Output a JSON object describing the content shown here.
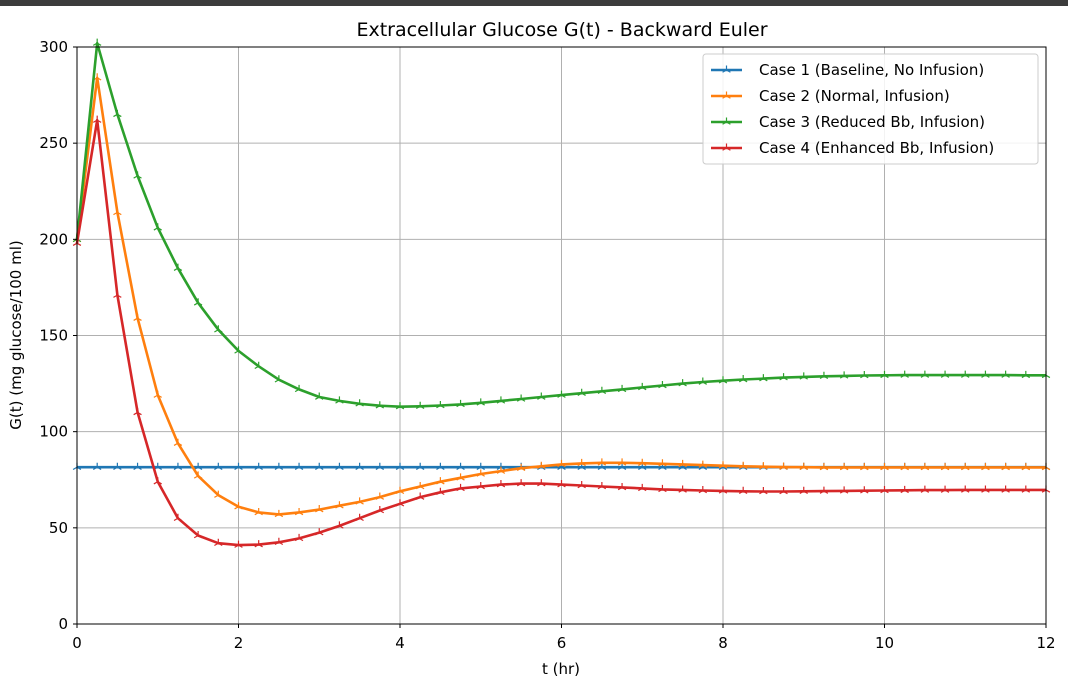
{
  "chart_data": {
    "type": "line",
    "title": "Extracellular Glucose G(t) - Backward Euler",
    "xlabel": "t (hr)",
    "ylabel": "G(t) (mg glucose/100 ml)",
    "xlim": [
      0,
      12
    ],
    "ylim": [
      0,
      300
    ],
    "xticks": [
      0,
      2,
      4,
      6,
      8,
      10,
      12
    ],
    "yticks": [
      0,
      50,
      100,
      150,
      200,
      250,
      300
    ],
    "grid": true,
    "legend_position": "top-right",
    "marker": "tri",
    "x": [
      0,
      0.25,
      0.5,
      0.75,
      1,
      1.25,
      1.5,
      1.75,
      2,
      2.25,
      2.5,
      2.75,
      3,
      3.25,
      3.5,
      3.75,
      4,
      4.25,
      4.5,
      4.75,
      5,
      5.25,
      5.5,
      5.75,
      6,
      6.25,
      6.5,
      6.75,
      7,
      7.25,
      7.5,
      7.75,
      8,
      8.25,
      8.5,
      8.75,
      9,
      9.25,
      9.5,
      9.75,
      10,
      10.25,
      10.5,
      10.75,
      11,
      11.25,
      11.5,
      11.75,
      12
    ],
    "series": [
      {
        "name": "Case 1 (Baseline, No Infusion)",
        "color": "#1f77b4",
        "values": [
          81.5,
          81.5,
          81.5,
          81.5,
          81.5,
          81.5,
          81.5,
          81.5,
          81.5,
          81.5,
          81.5,
          81.5,
          81.5,
          81.5,
          81.5,
          81.5,
          81.5,
          81.5,
          81.5,
          81.5,
          81.5,
          81.5,
          81.5,
          81.5,
          81.5,
          81.5,
          81.5,
          81.5,
          81.5,
          81.5,
          81.5,
          81.5,
          81.5,
          81.5,
          81.5,
          81.5,
          81.5,
          81.5,
          81.5,
          81.5,
          81.5,
          81.5,
          81.5,
          81.5,
          81.5,
          81.5,
          81.5,
          81.5,
          81.5
        ]
      },
      {
        "name": "Case 2 (Normal, Infusion)",
        "color": "#ff7f0e",
        "values": [
          200,
          284,
          214,
          159,
          119,
          94,
          77,
          67,
          61,
          58,
          57,
          58,
          59.5,
          61.5,
          63.5,
          66,
          69,
          71.5,
          74,
          76,
          78,
          79.5,
          81,
          82,
          83,
          83.5,
          83.8,
          83.8,
          83.6,
          83.3,
          83,
          82.6,
          82.3,
          82,
          81.8,
          81.6,
          81.5,
          81.4,
          81.4,
          81.4,
          81.4,
          81.4,
          81.4,
          81.4,
          81.4,
          81.4,
          81.4,
          81.4,
          81.4
        ]
      },
      {
        "name": "Case 3 (Reduced Bb, Infusion)",
        "color": "#2ca02c",
        "values": [
          200,
          302,
          265,
          233,
          206,
          185,
          167,
          153,
          142,
          134,
          127,
          122,
          118,
          116,
          114.5,
          113.5,
          113,
          113.2,
          113.6,
          114.2,
          115,
          116,
          117,
          118,
          119,
          120,
          121,
          122,
          123,
          124,
          125,
          125.8,
          126.5,
          127.1,
          127.6,
          128.1,
          128.5,
          128.8,
          129,
          129.2,
          129.3,
          129.4,
          129.4,
          129.4,
          129.4,
          129.4,
          129.4,
          129.3,
          129.3
        ]
      },
      {
        "name": "Case 4 (Enhanced Bb, Infusion)",
        "color": "#d62728",
        "values": [
          198,
          262,
          171,
          110,
          74,
          55,
          46,
          42,
          41,
          41.3,
          42.5,
          44.5,
          47.5,
          51,
          55,
          59,
          62.5,
          66,
          68.5,
          70.5,
          71.5,
          72.5,
          73,
          73,
          72.5,
          72,
          71.5,
          71,
          70.5,
          70,
          69.7,
          69.4,
          69.2,
          69,
          68.9,
          68.9,
          69,
          69.1,
          69.2,
          69.3,
          69.4,
          69.5,
          69.6,
          69.6,
          69.7,
          69.7,
          69.7,
          69.7,
          69.7
        ]
      }
    ]
  }
}
